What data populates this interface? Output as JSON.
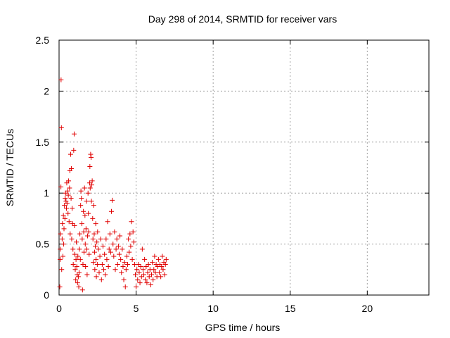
{
  "chart_data": {
    "type": "scatter",
    "title": "Day 298 of 2014, SRMTID for receiver vars",
    "xlabel": "GPS time / hours",
    "ylabel": "SRMTID / TECUs",
    "xlim": [
      0,
      24
    ],
    "ylim": [
      0,
      2.5
    ],
    "xticks": [
      0,
      5,
      10,
      15,
      20
    ],
    "yticks": [
      0,
      0.5,
      1,
      1.5,
      2,
      2.5
    ],
    "xtick_labels": [
      "0",
      "5",
      "10",
      "15",
      "20"
    ],
    "ytick_labels": [
      "0",
      "0.5",
      "1",
      "1.5",
      "2",
      "2.5"
    ],
    "grid": true,
    "marker": "+",
    "color": "#e00000",
    "series": [
      {
        "name": "receiver vars",
        "points": [
          [
            0.05,
            0.08
          ],
          [
            0.07,
            0.35
          ],
          [
            0.08,
            0.45
          ],
          [
            0.1,
            0.6
          ],
          [
            0.12,
            1.06
          ],
          [
            0.13,
            2.11
          ],
          [
            0.15,
            1.64
          ],
          [
            0.17,
            0.25
          ],
          [
            0.2,
            0.55
          ],
          [
            0.22,
            0.7
          ],
          [
            0.25,
            0.38
          ],
          [
            0.28,
            0.78
          ],
          [
            0.3,
            0.5
          ],
          [
            0.32,
            0.65
          ],
          [
            0.35,
            0.88
          ],
          [
            0.38,
            0.75
          ],
          [
            0.4,
            0.95
          ],
          [
            0.42,
            1.0
          ],
          [
            0.45,
            0.92
          ],
          [
            0.48,
            0.85
          ],
          [
            0.5,
            1.1
          ],
          [
            0.52,
            0.9
          ],
          [
            0.55,
            1.02
          ],
          [
            0.58,
            0.8
          ],
          [
            0.6,
            0.98
          ],
          [
            0.62,
            1.12
          ],
          [
            0.65,
            0.72
          ],
          [
            0.68,
            1.05
          ],
          [
            0.7,
            1.22
          ],
          [
            0.72,
            0.6
          ],
          [
            0.75,
            1.38
          ],
          [
            0.78,
            0.95
          ],
          [
            0.8,
            1.24
          ],
          [
            0.82,
            0.55
          ],
          [
            0.85,
            0.85
          ],
          [
            0.88,
            0.7
          ],
          [
            0.9,
            0.45
          ],
          [
            0.92,
            0.3
          ],
          [
            0.95,
            1.42
          ],
          [
            0.98,
            1.58
          ],
          [
            1.0,
            0.68
          ],
          [
            1.02,
            0.4
          ],
          [
            1.05,
            0.25
          ],
          [
            1.08,
            0.15
          ],
          [
            1.1,
            0.35
          ],
          [
            1.12,
            0.52
          ],
          [
            1.15,
            0.28
          ],
          [
            1.18,
            0.2
          ],
          [
            1.2,
            0.12
          ],
          [
            1.22,
            0.38
          ],
          [
            1.25,
            0.18
          ],
          [
            1.28,
            0.08
          ],
          [
            1.3,
            0.22
          ],
          [
            1.32,
            0.45
          ],
          [
            1.35,
            0.6
          ],
          [
            1.38,
            0.35
          ],
          [
            1.4,
            0.88
          ],
          [
            1.42,
            1.02
          ],
          [
            1.45,
            0.95
          ],
          [
            1.48,
            0.7
          ],
          [
            1.5,
            0.55
          ],
          [
            1.52,
            0.05
          ],
          [
            1.55,
            0.3
          ],
          [
            1.58,
            0.82
          ],
          [
            1.6,
            0.62
          ],
          [
            1.62,
            0.42
          ],
          [
            1.65,
            1.05
          ],
          [
            1.68,
            0.78
          ],
          [
            1.7,
            0.5
          ],
          [
            1.72,
            0.28
          ],
          [
            1.75,
            0.65
          ],
          [
            1.78,
            0.92
          ],
          [
            1.8,
            0.45
          ],
          [
            1.82,
            0.2
          ],
          [
            1.85,
            0.58
          ],
          [
            1.88,
            1.0
          ],
          [
            1.9,
            0.8
          ],
          [
            1.92,
            0.62
          ],
          [
            1.95,
            0.4
          ],
          [
            1.98,
            1.1
          ],
          [
            2.0,
            1.26
          ],
          [
            2.02,
            1.05
          ],
          [
            2.05,
            1.38
          ],
          [
            2.08,
            1.35
          ],
          [
            2.1,
            0.92
          ],
          [
            2.12,
            1.08
          ],
          [
            2.15,
            1.12
          ],
          [
            2.18,
            0.75
          ],
          [
            2.2,
            0.55
          ],
          [
            2.22,
            0.32
          ],
          [
            2.25,
            0.88
          ],
          [
            2.28,
            0.6
          ],
          [
            2.3,
            0.42
          ],
          [
            2.32,
            0.25
          ],
          [
            2.35,
            0.48
          ],
          [
            2.38,
            0.7
          ],
          [
            2.4,
            0.35
          ],
          [
            2.42,
            0.18
          ],
          [
            2.45,
            0.52
          ],
          [
            2.48,
            0.3
          ],
          [
            2.5,
            0.62
          ],
          [
            2.55,
            0.45
          ],
          [
            2.6,
            0.22
          ],
          [
            2.65,
            0.38
          ],
          [
            2.7,
            0.55
          ],
          [
            2.75,
            0.15
          ],
          [
            2.8,
            0.3
          ],
          [
            2.85,
            0.48
          ],
          [
            2.9,
            0.25
          ],
          [
            2.95,
            0.4
          ],
          [
            3.0,
            0.2
          ],
          [
            3.05,
            0.55
          ],
          [
            3.1,
            0.35
          ],
          [
            3.15,
            0.72
          ],
          [
            3.2,
            0.28
          ],
          [
            3.25,
            0.45
          ],
          [
            3.3,
            0.6
          ],
          [
            3.35,
            0.42
          ],
          [
            3.4,
            0.82
          ],
          [
            3.45,
            0.93
          ],
          [
            3.5,
            0.5
          ],
          [
            3.55,
            0.38
          ],
          [
            3.6,
            0.62
          ],
          [
            3.65,
            0.25
          ],
          [
            3.7,
            0.45
          ],
          [
            3.75,
            0.55
          ],
          [
            3.8,
            0.3
          ],
          [
            3.85,
            0.48
          ],
          [
            3.9,
            0.4
          ],
          [
            3.95,
            0.58
          ],
          [
            4.0,
            0.35
          ],
          [
            4.05,
            0.22
          ],
          [
            4.1,
            0.45
          ],
          [
            4.15,
            0.28
          ],
          [
            4.2,
            0.15
          ],
          [
            4.25,
            0.32
          ],
          [
            4.3,
            0.08
          ],
          [
            4.35,
            0.25
          ],
          [
            4.4,
            0.38
          ],
          [
            4.45,
            0.3
          ],
          [
            4.5,
            0.55
          ],
          [
            4.55,
            0.42
          ],
          [
            4.6,
            0.6
          ],
          [
            4.65,
            0.48
          ],
          [
            4.7,
            0.72
          ],
          [
            4.75,
            0.35
          ],
          [
            4.8,
            0.62
          ],
          [
            4.85,
            0.52
          ],
          [
            4.9,
            0.3
          ],
          [
            4.95,
            0.2
          ],
          [
            5.0,
            0.08
          ],
          [
            5.05,
            0.25
          ],
          [
            5.1,
            0.15
          ],
          [
            5.15,
            0.3
          ],
          [
            5.2,
            0.22
          ],
          [
            5.25,
            0.12
          ],
          [
            5.3,
            0.28
          ],
          [
            5.35,
            0.18
          ],
          [
            5.4,
            0.45
          ],
          [
            5.45,
            0.25
          ],
          [
            5.5,
            0.2
          ],
          [
            5.55,
            0.35
          ],
          [
            5.6,
            0.15
          ],
          [
            5.65,
            0.28
          ],
          [
            5.7,
            0.12
          ],
          [
            5.75,
            0.22
          ],
          [
            5.8,
            0.3
          ],
          [
            5.85,
            0.18
          ],
          [
            5.9,
            0.25
          ],
          [
            5.95,
            0.1
          ],
          [
            6.0,
            0.2
          ],
          [
            6.05,
            0.32
          ],
          [
            6.1,
            0.15
          ],
          [
            6.15,
            0.25
          ],
          [
            6.2,
            0.38
          ],
          [
            6.25,
            0.22
          ],
          [
            6.3,
            0.3
          ],
          [
            6.35,
            0.18
          ],
          [
            6.4,
            0.28
          ],
          [
            6.45,
            0.35
          ],
          [
            6.5,
            0.22
          ],
          [
            6.55,
            0.3
          ],
          [
            6.6,
            0.18
          ],
          [
            6.65,
            0.28
          ],
          [
            6.7,
            0.38
          ],
          [
            6.75,
            0.25
          ],
          [
            6.8,
            0.32
          ],
          [
            6.85,
            0.2
          ],
          [
            6.9,
            0.3
          ],
          [
            6.95,
            0.35
          ]
        ]
      }
    ]
  }
}
